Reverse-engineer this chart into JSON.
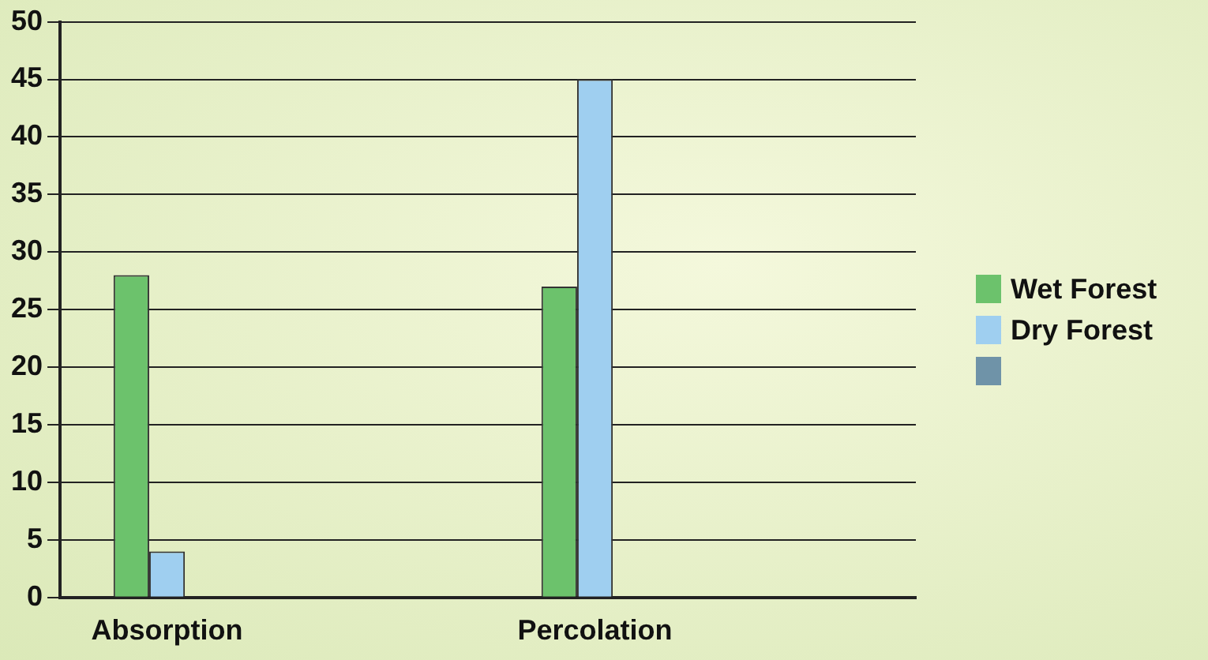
{
  "chart_data": {
    "type": "bar",
    "categories": [
      "Absorption",
      null,
      "Percolation",
      null
    ],
    "series": [
      {
        "name": "Wet Forest",
        "color": "#6cc26c",
        "values": [
          28,
          null,
          27,
          null
        ]
      },
      {
        "name": "Dry Forest",
        "color": "#9fcff0",
        "values": [
          4,
          null,
          45,
          null
        ]
      },
      {
        "color": "#6f93a8",
        "values": [
          null,
          null,
          null,
          null
        ]
      }
    ],
    "ylim": [
      0,
      50
    ],
    "yticks": [
      0,
      5,
      10,
      15,
      20,
      25,
      30,
      35,
      40,
      45,
      50
    ],
    "grid": "y",
    "legend": "right"
  }
}
